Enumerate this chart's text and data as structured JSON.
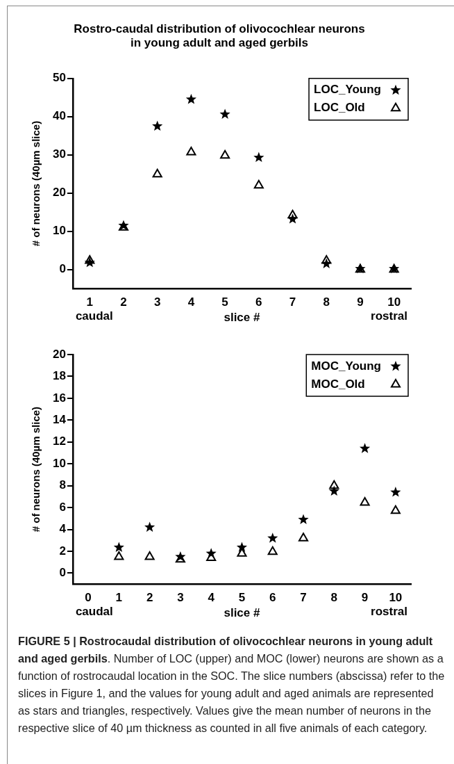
{
  "chart_data": [
    {
      "type": "scatter",
      "title": "Rostro-caudal distribution of olivocochlear neurons\nin young adult and aged gerbils",
      "xlabel": "slice #",
      "ylabel": "# of neurons (40µm slice)",
      "x": [
        1,
        2,
        3,
        4,
        5,
        6,
        7,
        8,
        9,
        10
      ],
      "xlim": [
        0.5,
        10.5
      ],
      "xticks": [
        1,
        2,
        3,
        4,
        5,
        6,
        7,
        8,
        9,
        10
      ],
      "ylim": [
        -5,
        50
      ],
      "yticks": [
        0,
        10,
        20,
        30,
        40,
        50
      ],
      "legend": "top right",
      "annotations": [
        "caudal",
        "rostral"
      ],
      "series": [
        {
          "name": "LOC_Young",
          "color": "#000000",
          "marker": "star",
          "values": [
            1.8,
            11.5,
            37.5,
            44.5,
            40.6,
            29.3,
            13.2,
            1.5,
            0.2,
            0.2
          ]
        },
        {
          "name": "LOC_Old",
          "color": "#000000",
          "marker": "triangle",
          "values": [
            2.3,
            11,
            24.9,
            30.7,
            29.8,
            22,
            14.2,
            2.3,
            0,
            0
          ]
        }
      ]
    },
    {
      "type": "scatter",
      "xlabel": "slice #",
      "ylabel": "# of neurons (40µm slice)",
      "x": [
        1,
        2,
        3,
        4,
        5,
        6,
        7,
        8,
        9,
        10
      ],
      "xlim": [
        -0.5,
        10.5
      ],
      "xticks": [
        0,
        1,
        2,
        3,
        4,
        5,
        6,
        7,
        8,
        9,
        10
      ],
      "ylim": [
        -1,
        20
      ],
      "yticks": [
        0,
        2,
        4,
        6,
        8,
        10,
        12,
        14,
        16,
        18,
        20
      ],
      "legend": "top right",
      "annotations": [
        "caudal",
        "rostral",
        "FIGURE 5 | Rostrocaudal distribution of olivocochlear neurons in young adult and aged gerbils",
        ". Number of LOC (upper) and MOC (lower) neurons are shown as a function of rostrocaudal location in the SOC. The slice numbers (abscissa) refer to the slices in Figure 1, and the values for young adult and aged animals are represented as stars and triangles, respectively. Values give the mean number of neurons in the respective slice of 40 µm thickness as counted in all five animals of each category."
      ],
      "series": [
        {
          "name": "MOC_Young",
          "color": "#000000",
          "marker": "star",
          "values": [
            2.35,
            4.2,
            1.5,
            1.8,
            2.35,
            3.2,
            4.9,
            7.5,
            11.4,
            7.4
          ]
        },
        {
          "name": "MOC_Old",
          "color": "#000000",
          "marker": "triangle",
          "values": [
            1.5,
            1.5,
            1.25,
            1.4,
            1.8,
            1.95,
            3.2,
            8.0,
            6.45,
            5.7
          ]
        }
      ]
    }
  ]
}
